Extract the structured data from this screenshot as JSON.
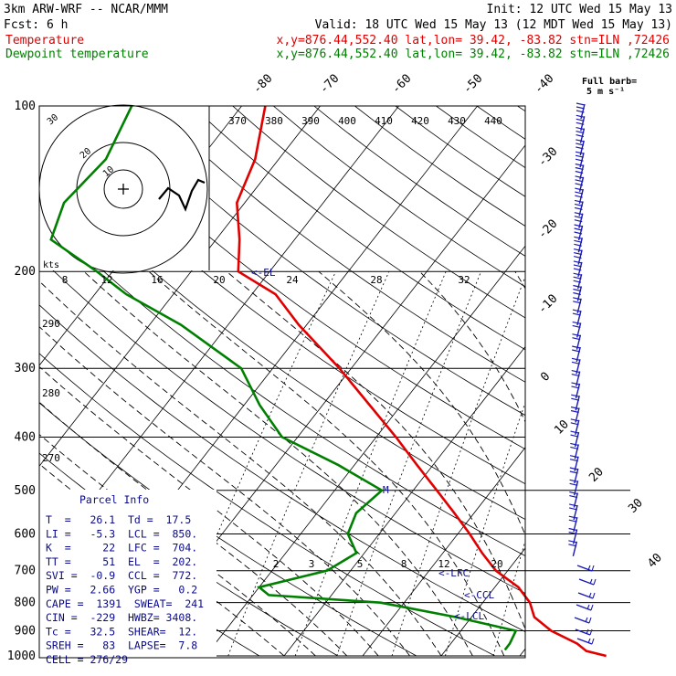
{
  "header": {
    "title": "3km ARW-WRF -- NCAR/MMM",
    "init": "Init: 12 UTC Wed 15 May 13",
    "fcst": "Fcst:     6 h",
    "valid": "Valid: 18 UTC Wed 15 May 13 (12 MDT Wed 15 May 13)"
  },
  "legend": [
    {
      "name": "Temperature",
      "info": "x,y=876.44,552.40   lat,lon= 39.42, -83.82  stn=ILN ,72426",
      "color": "#e00000"
    },
    {
      "name": "Dewpoint temperature",
      "info": "x,y=876.44,552.40   lat,lon= 39.42, -83.82  stn=ILN ,72426",
      "color": "#008000"
    }
  ],
  "wind": {
    "full_barb_label": "Full barb=",
    "full_barb_units": "5 m s⁻¹",
    "kts_label": "kts",
    "hodo_rings": [
      "30",
      "20",
      "10"
    ]
  },
  "markers": {
    "el": "<-EL",
    "lfc": "<-LFC",
    "ccl": "<-CCL",
    "lcl": "<-LCL",
    "m": "M"
  },
  "parcel": {
    "title": "Parcel Info",
    "rows": [
      "T  =   26.1  Td =  17.5",
      "LI =   -5.3  LCL =  850.",
      "K  =     22  LFC =  704.",
      "TT =     51  EL  =  202.",
      "SVI =  -0.9  CCL =  772.",
      "PW =   2.66  YGP =   0.2",
      "CAPE =  1391  SWEAT=  241",
      "CIN =  -229  HWBZ= 3408.",
      "Tc =   32.5  SHEAR=  12.",
      "SREH =   83  LAPSE=  7.8",
      "CELL = 276/29"
    ]
  },
  "chart_data": {
    "type": "line",
    "chart_kind": "skew-T log-P thermodynamic diagram",
    "y_axis": {
      "quantity": "pressure (hPa)",
      "scale": "log",
      "range": [
        1000,
        100
      ],
      "ticks": [
        100,
        200,
        300,
        400,
        500,
        600,
        700,
        800,
        900,
        1000
      ]
    },
    "isotherm_labels": [
      -80,
      -70,
      -60,
      -50,
      -40,
      -30,
      -20,
      -10,
      0,
      10,
      20,
      30,
      40
    ],
    "theta_labels_top": [
      370,
      380,
      390,
      400,
      410,
      420,
      430,
      440
    ],
    "theta_labels_left": [
      290,
      280,
      270
    ],
    "mixing_ratio_labels_200": [
      8,
      12,
      16,
      20,
      24,
      28,
      32
    ],
    "mixing_ratio_labels_700": [
      2,
      3,
      5,
      8,
      12,
      20
    ],
    "series": [
      {
        "name": "Temperature",
        "color": "#e00000",
        "points": [
          [
            1000,
            31
          ],
          [
            980,
            28
          ],
          [
            950,
            26.1
          ],
          [
            900,
            21.5
          ],
          [
            850,
            18
          ],
          [
            800,
            16
          ],
          [
            750,
            13
          ],
          [
            700,
            8.5
          ],
          [
            650,
            5
          ],
          [
            600,
            1.5
          ],
          [
            550,
            -2.5
          ],
          [
            500,
            -7
          ],
          [
            450,
            -12
          ],
          [
            400,
            -17.5
          ],
          [
            350,
            -24
          ],
          [
            300,
            -31.5
          ],
          [
            250,
            -41
          ],
          [
            220,
            -47
          ],
          [
            200,
            -54
          ],
          [
            175,
            -57
          ],
          [
            150,
            -61
          ],
          [
            125,
            -63
          ],
          [
            100,
            -67
          ]
        ]
      },
      {
        "name": "Dewpoint temperature",
        "color": "#008000",
        "points": [
          [
            975,
            17.5
          ],
          [
            950,
            17.5
          ],
          [
            900,
            17
          ],
          [
            850,
            8
          ],
          [
            800,
            -3
          ],
          [
            775,
            -18
          ],
          [
            750,
            -20
          ],
          [
            700,
            -13
          ],
          [
            650,
            -11
          ],
          [
            600,
            -14
          ],
          [
            550,
            -15
          ],
          [
            500,
            -14
          ],
          [
            450,
            -22
          ],
          [
            400,
            -32
          ],
          [
            350,
            -38
          ],
          [
            300,
            -44
          ],
          [
            250,
            -56
          ],
          [
            220,
            -66
          ],
          [
            200,
            -72
          ],
          [
            175,
            -81
          ],
          [
            150,
            -83
          ],
          [
            125,
            -82
          ],
          [
            100,
            -84
          ]
        ]
      }
    ]
  }
}
